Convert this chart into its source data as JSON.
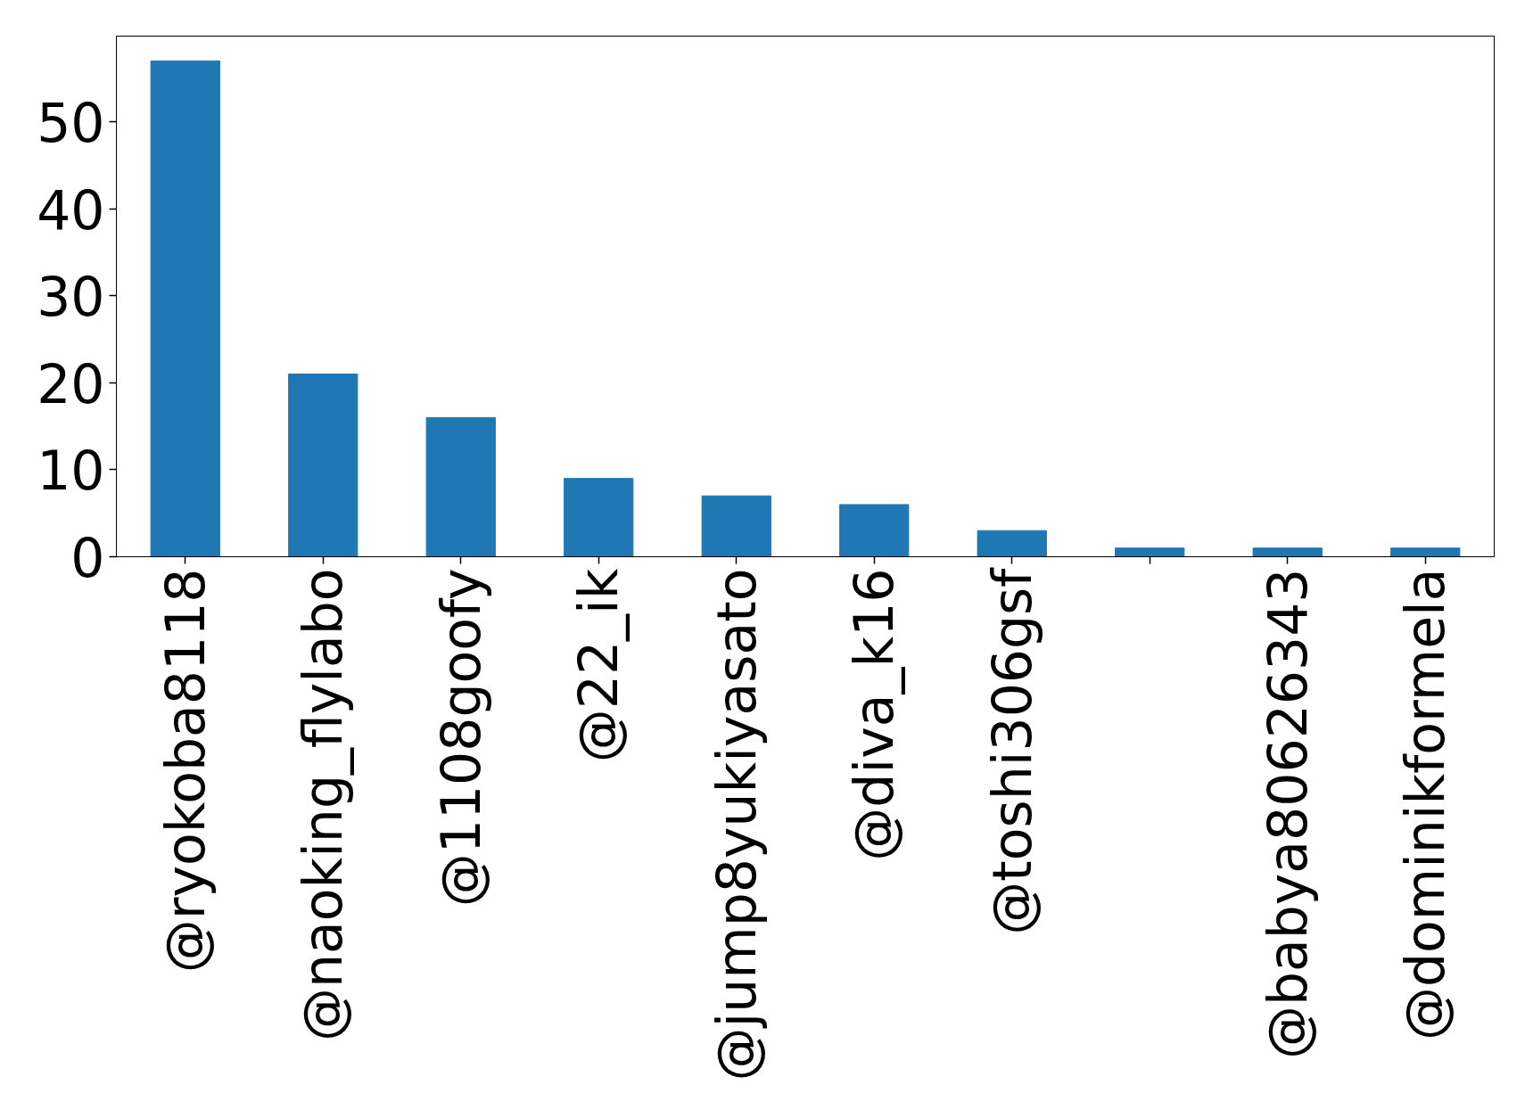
{
  "chart_data": {
    "type": "bar",
    "categories": [
      "@ryokoba8118",
      "@naoking_flylabo",
      "@1108goofy",
      "@22_ik",
      "@jump8yukiyasato",
      "@diva_k16",
      "@toshi306gsf",
      null,
      "@babya80626343",
      "@dominikformela"
    ],
    "values": [
      57,
      21,
      16,
      9,
      7,
      6,
      3,
      1,
      1,
      1
    ],
    "color": "#1f77b4",
    "ylim": [
      0,
      59.85
    ],
    "yticks": [
      0,
      10,
      20,
      30,
      40,
      50
    ],
    "grid": false
  }
}
